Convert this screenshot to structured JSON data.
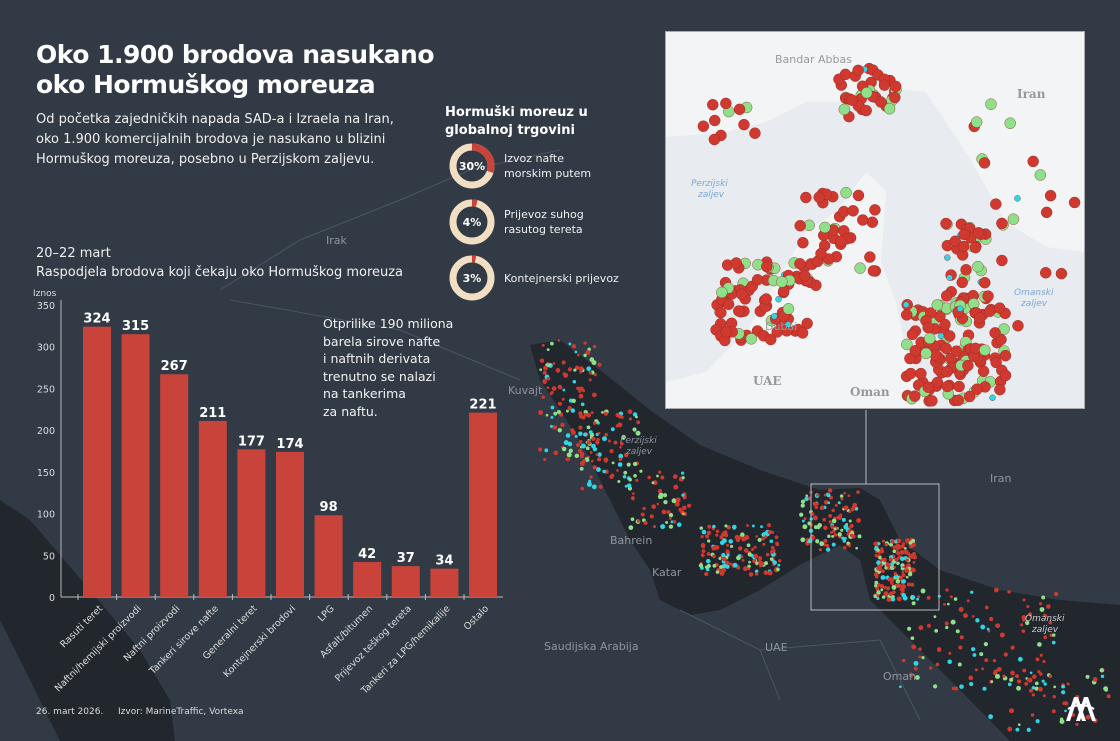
{
  "header": {
    "title_line1": "Oko 1.900 brodova nasukano",
    "title_line2": "oko Hormuškog moreuza",
    "lead": "Od početka zajedničkih napada SAD-a i Izraela na Iran, oko 1.900 komercijalnih brodova je nasukano u blizini Hormuškog moreuza, posebno u Perzijskom zaljevu."
  },
  "chart_subtitle": {
    "date_range": "20–22 mart",
    "description": "Raspodjela brodova koji čekaju oko Hormuškog moreuza"
  },
  "note": [
    "Otprilike 190 miliona",
    "barela sirove nafte",
    "i naftnih derivata",
    "trenutno se nalazi",
    "na tankerima",
    "za naftu."
  ],
  "hormuz": {
    "title_line1": "Hormuški moreuz u",
    "title_line2": "globalnoj trgovini",
    "items": [
      {
        "percent": 30,
        "label": "30%",
        "text1": "Izvoz nafte",
        "text2": "morskim putem"
      },
      {
        "percent": 4,
        "label": "4%",
        "text1": "Prijevoz suhog",
        "text2": "rasutog tereta"
      },
      {
        "percent": 3,
        "label": "3%",
        "text1": "Kontejnerski prijevoz",
        "text2": ""
      }
    ]
  },
  "chart_data": {
    "type": "bar",
    "ylabel": "Iznos",
    "ylim": [
      0,
      350
    ],
    "yticks": [
      0,
      50,
      100,
      150,
      200,
      250,
      300,
      350
    ],
    "categories": [
      "Rasuti teret",
      "Naftni/hemijski proizvodi",
      "Naftni proizvodi",
      "Tankeri sirove nafte",
      "Generalni teret",
      "Kontejnerski brodovi",
      "LPG",
      "Asfalt/bitumen",
      "Prijevoz teškog tereta",
      "Tankeri za LPG/hemikalije",
      "Ostalo"
    ],
    "values": [
      324,
      315,
      267,
      211,
      177,
      174,
      98,
      42,
      37,
      34,
      221
    ],
    "grid": false,
    "bar_color": "#c8443a"
  },
  "footer": {
    "date": "26. mart 2026.",
    "source": "Izvor: MarineTraffic, Vortexa"
  },
  "map": {
    "labels": [
      "Irak",
      "Kuvajt",
      "Perzijski",
      "zaljev",
      "Bahrein",
      "Katar",
      "Saudijska Arabija",
      "UAE",
      "Oman",
      "Iran",
      "Omanski",
      "zaljev"
    ],
    "inset_labels": [
      "Bandar Abbas",
      "Iran",
      "Perzijski",
      "zaljev",
      "Omanski",
      "zaljev",
      "Dubai",
      "UAE",
      "Oman"
    ],
    "ship_colors": {
      "stranded": "#d0392f",
      "moving": "#8fe08a",
      "other": "#2fd6e6"
    }
  },
  "colors": {
    "background": "#323a45",
    "accent": "#c8443a",
    "donut_base": "#f2dfc3"
  }
}
